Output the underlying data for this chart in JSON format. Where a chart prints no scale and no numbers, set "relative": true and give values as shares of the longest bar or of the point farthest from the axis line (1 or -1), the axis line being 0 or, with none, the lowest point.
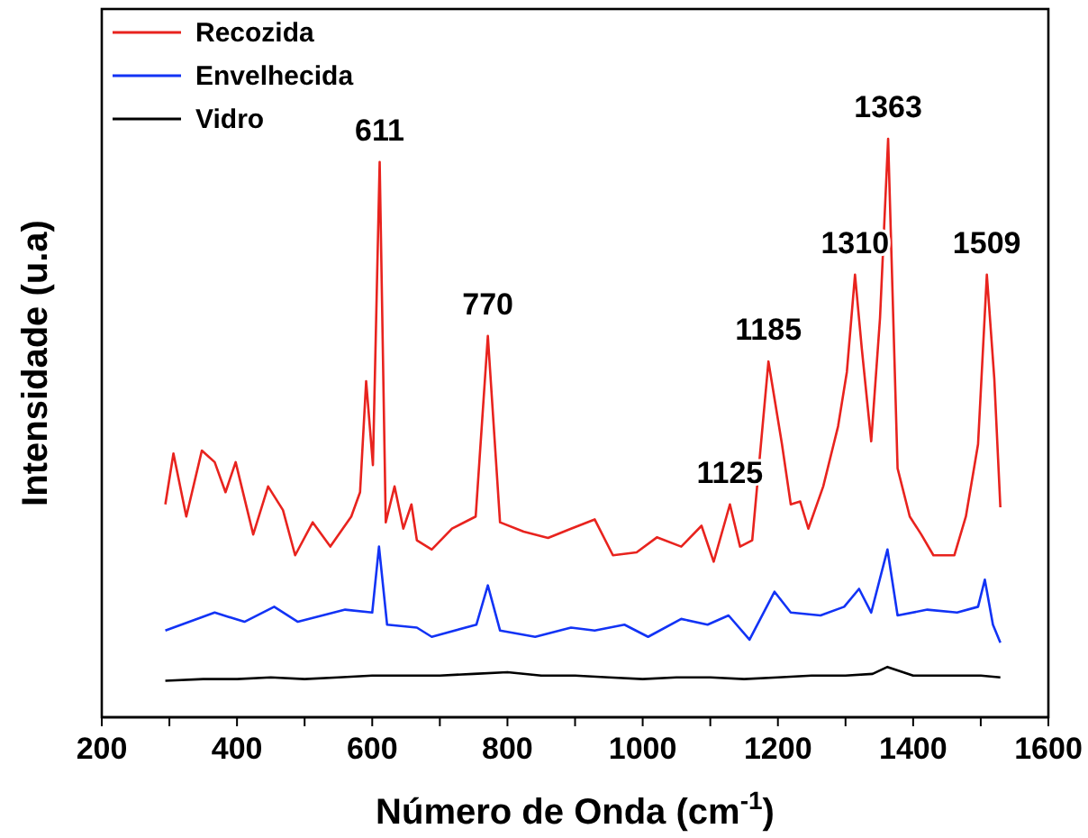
{
  "chart_data": {
    "type": "line",
    "relative": true,
    "xlabel": "Número de Onda (cm$^{-1}$)",
    "ylabel": "Intensidade (u.a)",
    "legend": "top left",
    "line_style": "solid",
    "marker": "none",
    "grid": false,
    "tick_labels": "x",
    "xlim": [
      200,
      1600
    ],
    "xticks": [
      200,
      {
        "value": 300,
        "label": null
      },
      400,
      {
        "value": 500,
        "label": null
      },
      600,
      {
        "value": 700,
        "label": null
      },
      800,
      {
        "value": 900,
        "label": null
      },
      1000,
      {
        "value": 1100,
        "label": null
      },
      1200,
      {
        "value": 1300,
        "label": null
      },
      1400,
      {
        "value": 1500,
        "label": null
      },
      1600
    ],
    "series": [
      {
        "name": "Recozida",
        "color": "#e8231e",
        "x": [
          294,
          306,
          325,
          348,
          367,
          383,
          398,
          424,
          446,
          468,
          486,
          512,
          538,
          569,
          582,
          591,
          601,
          611,
          620,
          633,
          646,
          658,
          666,
          688,
          718,
          753,
          771,
          789,
          824,
          860,
          894,
          929,
          956,
          991,
          1021,
          1057,
          1087,
          1105,
          1129,
          1144,
          1162,
          1186,
          1206,
          1219,
          1233,
          1245,
          1267,
          1289,
          1302,
          1314,
          1324,
          1338,
          1351,
          1363,
          1377,
          1395,
          1412,
          1430,
          1461,
          1478,
          1496,
          1509,
          1520,
          1529
        ],
        "values": [
          0.368,
          0.456,
          0.347,
          0.461,
          0.441,
          0.389,
          0.441,
          0.316,
          0.399,
          0.358,
          0.28,
          0.337,
          0.295,
          0.347,
          0.389,
          0.581,
          0.436,
          0.96,
          0.337,
          0.399,
          0.326,
          0.368,
          0.306,
          0.29,
          0.326,
          0.347,
          0.659,
          0.337,
          0.321,
          0.31,
          0.326,
          0.342,
          0.28,
          0.285,
          0.311,
          0.295,
          0.331,
          0.269,
          0.368,
          0.295,
          0.306,
          0.615,
          0.472,
          0.368,
          0.373,
          0.326,
          0.399,
          0.503,
          0.597,
          0.765,
          0.638,
          0.477,
          0.69,
          1.0,
          0.43,
          0.347,
          0.316,
          0.28,
          0.28,
          0.347,
          0.472,
          0.765,
          0.586,
          0.363
        ]
      },
      {
        "name": "Envelhecida",
        "color": "#1233f5",
        "x": [
          294,
          367,
          411,
          455,
          490,
          560,
          600,
          610,
          622,
          666,
          688,
          754,
          771,
          789,
          841,
          894,
          929,
          973,
          1008,
          1057,
          1096,
          1127,
          1158,
          1195,
          1219,
          1263,
          1298,
          1320,
          1338,
          1362,
          1377,
          1421,
          1465,
          1496,
          1506,
          1518,
          1529
        ],
        "values": [
          0.15,
          0.181,
          0.165,
          0.191,
          0.165,
          0.186,
          0.181,
          0.295,
          0.16,
          0.155,
          0.139,
          0.16,
          0.228,
          0.15,
          0.139,
          0.155,
          0.15,
          0.16,
          0.139,
          0.17,
          0.16,
          0.176,
          0.134,
          0.217,
          0.181,
          0.176,
          0.191,
          0.222,
          0.181,
          0.29,
          0.176,
          0.186,
          0.181,
          0.191,
          0.238,
          0.16,
          0.129
        ]
      },
      {
        "name": "Vidro",
        "color": "#000000",
        "x": [
          294,
          350,
          400,
          450,
          500,
          550,
          600,
          650,
          700,
          750,
          800,
          850,
          900,
          950,
          1000,
          1050,
          1100,
          1150,
          1200,
          1250,
          1300,
          1340,
          1362,
          1400,
          1450,
          1500,
          1529
        ],
        "values": [
          0.063,
          0.066,
          0.066,
          0.069,
          0.066,
          0.069,
          0.072,
          0.072,
          0.072,
          0.075,
          0.078,
          0.072,
          0.072,
          0.069,
          0.066,
          0.069,
          0.069,
          0.066,
          0.069,
          0.072,
          0.072,
          0.075,
          0.087,
          0.072,
          0.072,
          0.072,
          0.069
        ]
      }
    ],
    "annotations": [
      {
        "text": "611",
        "x": 611,
        "y": 0.96
      },
      {
        "text": "770",
        "x": 771,
        "y": 0.659
      },
      {
        "text": "1125",
        "x": 1129,
        "y": 0.368
      },
      {
        "text": "1185",
        "x": 1186,
        "y": 0.615
      },
      {
        "text": "1310",
        "x": 1314,
        "y": 0.765
      },
      {
        "text": "1363",
        "x": 1363,
        "y": 1.0
      },
      {
        "text": "1509",
        "x": 1509,
        "y": 0.765
      }
    ]
  }
}
